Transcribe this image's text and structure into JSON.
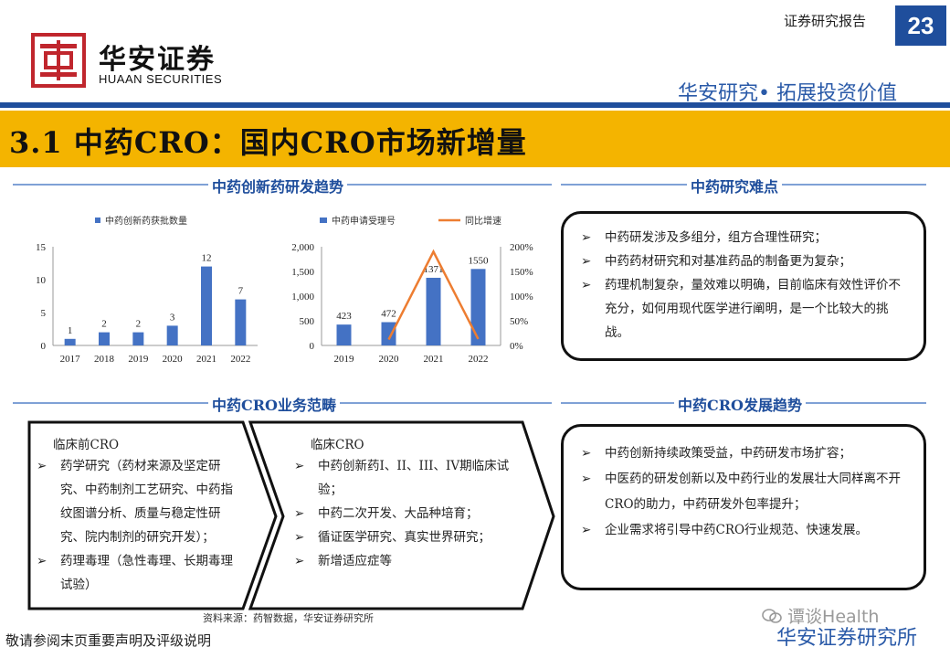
{
  "header": {
    "report_label": "证券研究报告",
    "page_number": "23",
    "logo_cn": "华安证券",
    "logo_en": "HUAAN SECURITIES",
    "slogan": "华安研究• 拓展投资价值",
    "colors": {
      "brand_blue": "#1f4e9c",
      "logo_red": "#c0262d",
      "title_band": "#f4b400"
    }
  },
  "title": "3.1 中药CRO：国内CRO市场新增量",
  "sections": {
    "trend": "中药创新药研发趋势",
    "difficulty": "中药研究难点",
    "scope": "中药CRO业务范畴",
    "development": "中药CRO发展趋势"
  },
  "chart_data": [
    {
      "type": "bar",
      "legend": [
        "中药创新药获批数量"
      ],
      "categories": [
        "2017",
        "2018",
        "2019",
        "2020",
        "2021",
        "2022"
      ],
      "series": [
        {
          "name": "中药创新药获批数量",
          "values": [
            1,
            2,
            2,
            3,
            12,
            7
          ]
        }
      ],
      "yticks": [
        "0",
        "5",
        "10",
        "15"
      ],
      "ylim": [
        0,
        15
      ],
      "legend_position": "top",
      "grid": false,
      "colors": [
        "#4472c4"
      ]
    },
    {
      "type": "bar+line",
      "legend": [
        "中药申请受理号",
        "同比增速"
      ],
      "categories": [
        "2019",
        "2020",
        "2021",
        "2022"
      ],
      "series": [
        {
          "name": "中药申请受理号",
          "type": "bar",
          "values": [
            423,
            472,
            1371,
            1550
          ]
        },
        {
          "name": "同比增速",
          "type": "line",
          "axis": "right",
          "values": [
            null,
            0.12,
            1.9,
            0.13
          ]
        }
      ],
      "yticks": [
        "0",
        "500",
        "1,000",
        "1,500",
        "2,000"
      ],
      "ylim": [
        0,
        2000
      ],
      "y2ticks": [
        "0%",
        "50%",
        "100%",
        "150%",
        "200%"
      ],
      "y2lim": [
        0,
        2
      ],
      "legend_position": "top",
      "grid": false,
      "colors": [
        "#4472c4",
        "#ed7d31"
      ]
    }
  ],
  "difficulty_items": [
    "中药研发涉及多组分，组方合理性研究；",
    "中药药材研究和对基准药品的制备更为复杂；",
    "药理机制复杂，量效难以明确，目前临床有效性评价不充分，如何用现代医学进行阐明，是一个比较大的挑战。"
  ],
  "preclinical": {
    "title": "临床前CRO",
    "items": [
      "药学研究（药材来源及坚定研究、中药制剂工艺研究、中药指纹图谱分析、质量与稳定性研究、院内制剂的研究开发）；",
      "药理毒理（急性毒理、长期毒理试验）"
    ]
  },
  "clinical": {
    "title": "临床CRO",
    "items": [
      "中药创新药I、II、III、IV期临床试验；",
      "中药二次开发、大品种培育；",
      "循证医学研究、真实世界研究；",
      "新增适应症等"
    ]
  },
  "development_items": [
    "中药创新持续政策受益，中药研发市场扩容；",
    "中医药的研发创新以及中药行业的发展壮大同样离不开CRO的助力，中药研发外包率提升；",
    "企业需求将引导中药CRO行业规范、快速发展。"
  ],
  "bullet_symbol": "➢",
  "source_note": "资料来源：药智数据，华安证券研究所",
  "footer_left": "敬请参阅末页重要声明及评级说明",
  "watermark": "谭谈Health",
  "footer_right": "华安证券研究所"
}
